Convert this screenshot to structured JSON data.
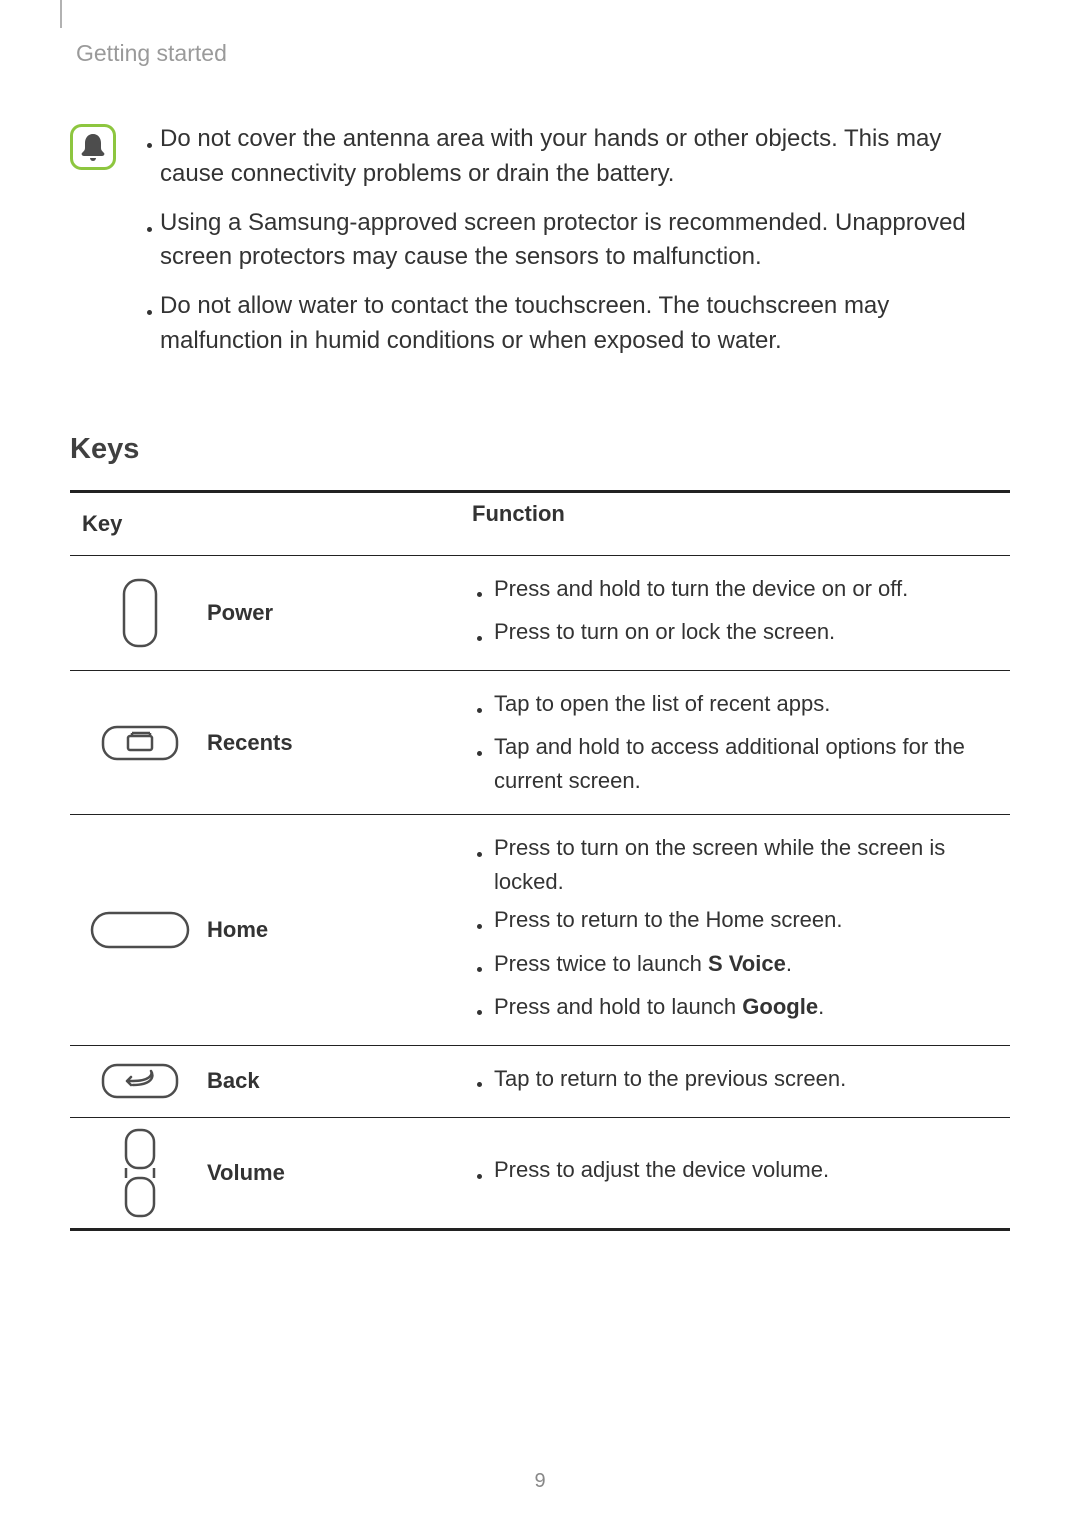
{
  "running_head": "Getting started",
  "page_number": "9",
  "colors": {
    "note_icon_border": "#8dc63f",
    "note_icon_bell": "#4d4d4d",
    "text_color": "#333333",
    "heading_color": "#404040",
    "grey_text": "#9a9a9a",
    "rule_color": "#222222",
    "key_stroke": "#4d4d4d"
  },
  "note_items": [
    "Do not cover the antenna area with your hands or other objects. This may cause connectivity problems or drain the battery.",
    "Using a Samsung-approved screen protector is recommended. Unapproved screen protectors may cause the sensors to malfunction.",
    "Do not allow water to contact the touchscreen. The touchscreen may malfunction in humid conditions or when exposed to water."
  ],
  "section_title": "Keys",
  "table": {
    "header": {
      "key": "Key",
      "fn": "Function"
    },
    "rows": [
      {
        "icon": "power",
        "label": "Power",
        "functions": [
          [
            {
              "t": "Press and hold to turn the device on or off."
            }
          ],
          [
            {
              "t": "Press to turn on or lock the screen."
            }
          ]
        ]
      },
      {
        "icon": "recents",
        "label": "Recents",
        "functions": [
          [
            {
              "t": "Tap to open the list of recent apps."
            }
          ],
          [
            {
              "t": "Tap and hold to access additional options for the current screen."
            }
          ]
        ]
      },
      {
        "icon": "home",
        "label": "Home",
        "functions": [
          [
            {
              "t": "Press to turn on the screen while the screen is locked."
            }
          ],
          [
            {
              "t": "Press to return to the Home screen."
            }
          ],
          [
            {
              "t": "Press twice to launch "
            },
            {
              "t": "S Voice",
              "b": true
            },
            {
              "t": "."
            }
          ],
          [
            {
              "t": "Press and hold to launch "
            },
            {
              "t": "Google",
              "b": true
            },
            {
              "t": "."
            }
          ]
        ]
      },
      {
        "icon": "back",
        "label": "Back",
        "functions": [
          [
            {
              "t": "Tap to return to the previous screen."
            }
          ]
        ]
      },
      {
        "icon": "volume",
        "label": "Volume",
        "functions": [
          [
            {
              "t": "Press to adjust the device volume."
            }
          ]
        ]
      }
    ]
  }
}
